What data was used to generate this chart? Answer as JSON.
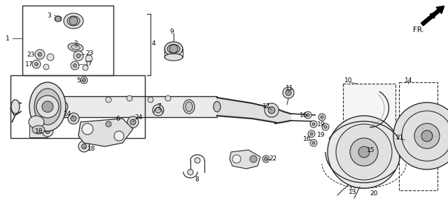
{
  "bg_color": "#ffffff",
  "lc": "#2a2a2a",
  "gray1": "#c8c8c8",
  "gray2": "#e0e0e0",
  "gray3": "#a8a8a8",
  "figsize": [
    6.4,
    2.94
  ],
  "dpi": 100
}
